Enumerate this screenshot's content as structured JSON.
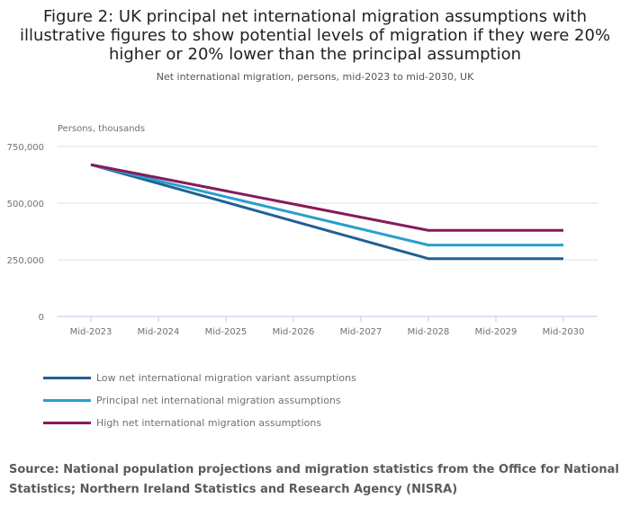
{
  "title": "Figure 2: UK principal net international migration assumptions with illustrative figures to show potential levels of migration if they were 20% higher or 20% lower than the principal assumption",
  "subtitle": "Net international migration, persons, mid-2023 to mid-2030, UK",
  "source": "Source: National population projections and migration statistics from the Office for National Statistics;   Northern Ireland Statistics and Research Agency (NISRA)",
  "chart_data": {
    "type": "line",
    "title": "Figure 2: UK principal net international migration assumptions with illustrative figures to show potential levels of migration if they were 20% higher or 20% lower than the principal assumption",
    "subtitle": "Net international migration, persons, mid-2023 to mid-2030, UK",
    "ylabel": "Persons, thousands",
    "xlabel": "",
    "categories": [
      "Mid-2023",
      "Mid-2024",
      "Mid-2025",
      "Mid-2026",
      "Mid-2027",
      "Mid-2028",
      "Mid-2029",
      "Mid-2030"
    ],
    "ylim": [
      0,
      750000
    ],
    "yticks": [
      0,
      250000,
      500000,
      750000
    ],
    "ytick_labels": [
      "0",
      "250,000",
      "500,000",
      "750,000"
    ],
    "grid": true,
    "legend_placement": "bottom",
    "series": [
      {
        "name": "Low net international migration variant assumptions",
        "color": "#206095",
        "values": [
          670000,
          587000,
          504000,
          421000,
          338000,
          255000,
          255000,
          255000
        ]
      },
      {
        "name": "Principal net international migration assumptions",
        "color": "#27a0cc",
        "values": [
          670000,
          599000,
          528000,
          457000,
          386000,
          315000,
          315000,
          315000
        ]
      },
      {
        "name": "High net international migration assumptions",
        "color": "#871a5b",
        "values": [
          670000,
          612000,
          554000,
          496000,
          438000,
          380000,
          380000,
          380000
        ]
      }
    ]
  }
}
